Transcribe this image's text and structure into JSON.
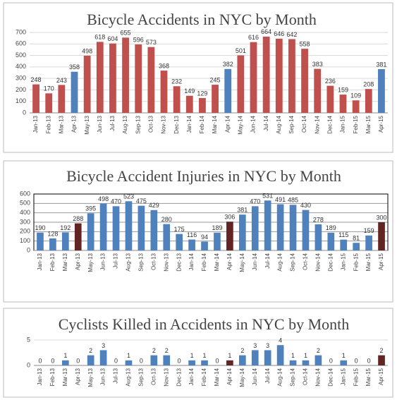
{
  "chart_data": [
    {
      "type": "bar",
      "title": "Bicycle Accidents in NYC by Month",
      "categories": [
        "Jan-13",
        "Feb-13",
        "Mar-13",
        "Apr-13",
        "May-13",
        "Jun-13",
        "Jul-13",
        "Aug-13",
        "Sep-13",
        "Oct-13",
        "Nov-13",
        "Dec-13",
        "Jan-14",
        "Feb-14",
        "Mar-14",
        "Apr-14",
        "May-14",
        "Jun-14",
        "Jul-14",
        "Aug-14",
        "Sep-14",
        "Oct-14",
        "Nov-14",
        "Dec-14",
        "Jan-15",
        "Feb-15",
        "Mar-15",
        "Apr-15"
      ],
      "values": [
        248,
        170,
        243,
        358,
        498,
        618,
        604,
        655,
        596,
        573,
        368,
        232,
        149,
        129,
        245,
        382,
        501,
        616,
        664,
        646,
        642,
        558,
        383,
        236,
        159,
        109,
        208,
        381
      ],
      "colors": [
        "#c0504d",
        "#c0504d",
        "#c0504d",
        "#4f81bd",
        "#c0504d",
        "#c0504d",
        "#c0504d",
        "#c0504d",
        "#c0504d",
        "#c0504d",
        "#c0504d",
        "#c0504d",
        "#c0504d",
        "#c0504d",
        "#c0504d",
        "#4f81bd",
        "#c0504d",
        "#c0504d",
        "#c0504d",
        "#c0504d",
        "#c0504d",
        "#c0504d",
        "#c0504d",
        "#c0504d",
        "#c0504d",
        "#c0504d",
        "#c0504d",
        "#4f81bd"
      ],
      "ylim": [
        0,
        700
      ],
      "yticks": [
        0,
        100,
        200,
        300,
        400,
        500,
        600,
        700
      ],
      "grid": true
    },
    {
      "type": "bar",
      "title": "Bicycle Accident Injuries in NYC by Month",
      "categories": [
        "Jan-13",
        "Feb-13",
        "Mar-13",
        "Apr-13",
        "May-13",
        "Jun-13",
        "Jul-13",
        "Aug-13",
        "Sep-13",
        "Oct-13",
        "Nov-13",
        "Dec-13",
        "Jan-14",
        "Feb-14",
        "Mar-14",
        "Apr-14",
        "May-14",
        "Jun-14",
        "Jul-14",
        "Aug-14",
        "Sep-14",
        "Oct-14",
        "Nov-14",
        "Dec-14",
        "Jan-15",
        "Feb-15",
        "Mar-15",
        "Apr-15"
      ],
      "values": [
        190,
        128,
        192,
        288,
        395,
        498,
        470,
        523,
        475,
        429,
        280,
        175,
        116,
        94,
        189,
        306,
        381,
        470,
        531,
        491,
        485,
        430,
        278,
        189,
        115,
        81,
        159,
        300
      ],
      "colors": [
        "#4f81bd",
        "#4f81bd",
        "#4f81bd",
        "#632523",
        "#4f81bd",
        "#4f81bd",
        "#4f81bd",
        "#4f81bd",
        "#4f81bd",
        "#4f81bd",
        "#4f81bd",
        "#4f81bd",
        "#4f81bd",
        "#4f81bd",
        "#4f81bd",
        "#632523",
        "#4f81bd",
        "#4f81bd",
        "#4f81bd",
        "#4f81bd",
        "#4f81bd",
        "#4f81bd",
        "#4f81bd",
        "#4f81bd",
        "#4f81bd",
        "#4f81bd",
        "#4f81bd",
        "#632523"
      ],
      "ylim": [
        0,
        600
      ],
      "yticks": [
        0,
        100,
        200,
        300,
        400,
        500,
        600
      ],
      "grid": true
    },
    {
      "type": "bar",
      "title": "Cyclists Killed in Accidents in NYC by Month",
      "categories": [
        "Jan-13",
        "Feb-13",
        "Mar-13",
        "Apr-13",
        "May-13",
        "Jun-13",
        "Jul-13",
        "Aug-13",
        "Sep-13",
        "Oct-13",
        "Nov-13",
        "Dec-13",
        "Jan-14",
        "Feb-14",
        "Mar-14",
        "Apr-14",
        "May-14",
        "Jun-14",
        "Jul-14",
        "Aug-14",
        "Sep-14",
        "Oct-14",
        "Nov-14",
        "Dec-14",
        "Jan-15",
        "Feb-15",
        "Mar-15",
        "Apr-15"
      ],
      "values": [
        0,
        0,
        1,
        0,
        2,
        3,
        0,
        1,
        0,
        2,
        2,
        0,
        1,
        1,
        0,
        1,
        2,
        3,
        3,
        4,
        1,
        1,
        2,
        0,
        1,
        0,
        0,
        2
      ],
      "colors": [
        "#4f81bd",
        "#4f81bd",
        "#4f81bd",
        "#632523",
        "#4f81bd",
        "#4f81bd",
        "#4f81bd",
        "#4f81bd",
        "#4f81bd",
        "#4f81bd",
        "#4f81bd",
        "#4f81bd",
        "#4f81bd",
        "#4f81bd",
        "#4f81bd",
        "#632523",
        "#4f81bd",
        "#4f81bd",
        "#4f81bd",
        "#4f81bd",
        "#4f81bd",
        "#4f81bd",
        "#4f81bd",
        "#4f81bd",
        "#4f81bd",
        "#4f81bd",
        "#4f81bd",
        "#632523"
      ],
      "ylim": [
        0,
        5
      ],
      "yticks": [
        0,
        5
      ],
      "grid": true
    }
  ]
}
